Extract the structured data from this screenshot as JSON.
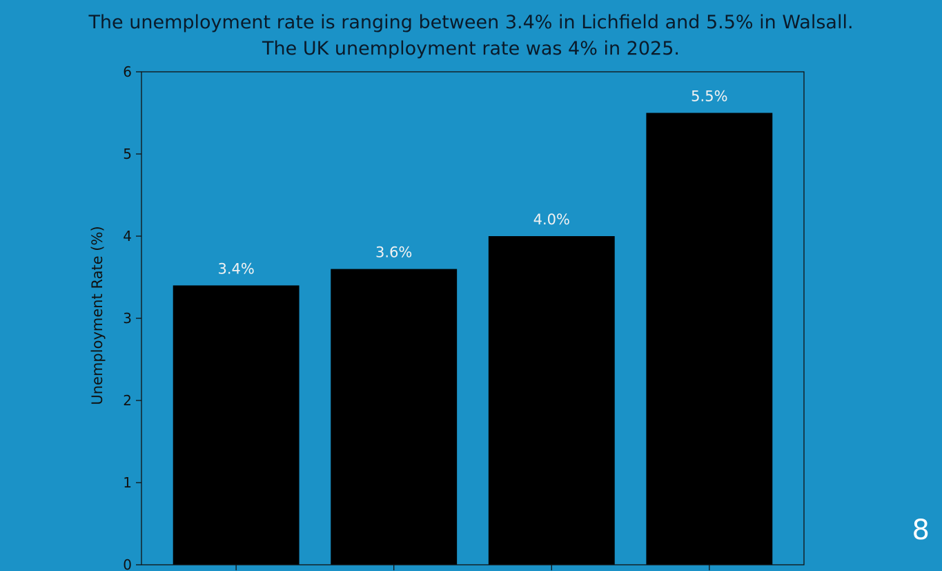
{
  "title_lines": [
    "The unemployment rate is ranging between 3.4% in Lichfield and 5.5% in Walsall.",
    "The UK unemployment rate was 4% in 2025."
  ],
  "page_number": "8",
  "colors": {
    "background": "#1b92c7",
    "bar": "#000000",
    "bar_label": "#f2f2f2",
    "axis": "#111111"
  },
  "chart_data": {
    "type": "bar",
    "title": "The unemployment rate is ranging between 3.4% in Lichfield and 5.5% in Walsall.\nThe UK unemployment rate was 4% in 2025.",
    "ylabel": "Unemployment Rate (%)",
    "xlabel": "",
    "ylim": [
      0,
      6
    ],
    "yticks": [
      0,
      1,
      2,
      3,
      4,
      5,
      6
    ],
    "categories": [
      "",
      "",
      "",
      ""
    ],
    "values": [
      3.4,
      3.6,
      4.0,
      5.5
    ],
    "data_labels": [
      "3.4%",
      "3.6%",
      "4.0%",
      "5.5%"
    ],
    "grid": false
  }
}
